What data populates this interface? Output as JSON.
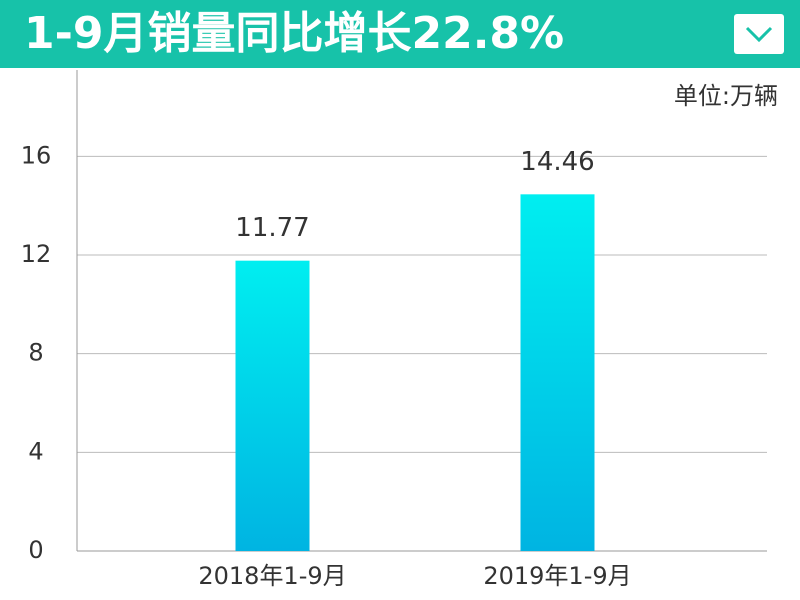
{
  "chart_data": {
    "type": "bar",
    "title": "1-9月销量同比增长22.8%",
    "unit": "单位:万辆",
    "categories": [
      "2018年1-9月",
      "2019年1-9月"
    ],
    "values": [
      11.77,
      14.46
    ],
    "color": "#00b4e2",
    "color_top": "#00eef0",
    "ylim": [
      0,
      19.5
    ],
    "yticks": [
      0,
      4,
      8,
      12,
      16
    ],
    "grid": true
  }
}
